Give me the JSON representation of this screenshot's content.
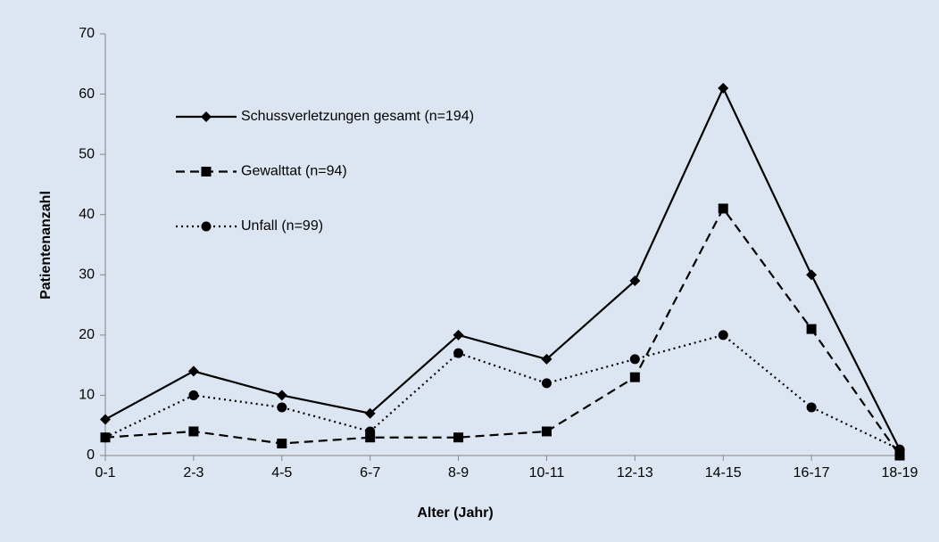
{
  "chart_data": {
    "type": "line",
    "x_label": "Alter (Jahr)",
    "y_label": "Patientenanzahl",
    "categories": [
      "0-1",
      "2-3",
      "4-5",
      "6-7",
      "8-9",
      "10-11",
      "12-13",
      "14-15",
      "16-17",
      "18-19"
    ],
    "series": [
      {
        "name": "Schussverletzungen gesamt (n=194)",
        "color": "#000000",
        "line_style": "solid",
        "marker": "diamond",
        "values": [
          6,
          14,
          10,
          7,
          20,
          16,
          29,
          61,
          30,
          1
        ]
      },
      {
        "name": "Gewalttat (n=94)",
        "color": "#000000",
        "line_style": "dashed",
        "marker": "square",
        "values": [
          3,
          4,
          2,
          3,
          3,
          4,
          13,
          41,
          21,
          0
        ]
      },
      {
        "name": "Unfall (n=99)",
        "color": "#000000",
        "line_style": "dotted",
        "marker": "circle",
        "values": [
          3,
          10,
          8,
          4,
          17,
          12,
          16,
          20,
          8,
          1
        ]
      }
    ],
    "ylim": [
      0,
      70
    ],
    "yticks": [
      0,
      10,
      20,
      30,
      40,
      50,
      60,
      70
    ],
    "grid": false,
    "legend": "upper left"
  }
}
